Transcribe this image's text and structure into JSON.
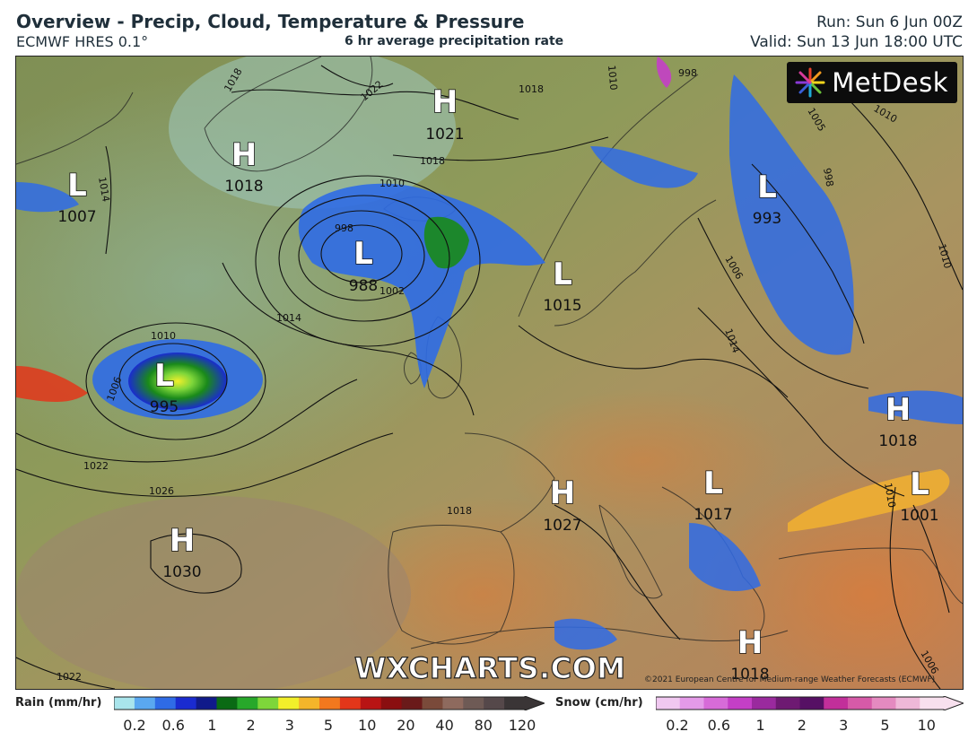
{
  "header": {
    "title": "Overview - Precip, Cloud, Temperature & Pressure",
    "model": "ECMWF HRES 0.1°",
    "product": "6 hr average precipitation rate",
    "run": "Run: Sun 6 Jun 00Z",
    "valid": "Valid: Sun 13 Jun 18:00 UTC"
  },
  "brand": "MetDesk",
  "watermark": "WXCHARTS.COM",
  "copyright": "©2021 European Centre for Medium-range Weather Forecasts (ECMWF)",
  "pressure_systems": [
    {
      "type": "H",
      "value": "1021"
    },
    {
      "type": "H",
      "value": "1018"
    },
    {
      "type": "L",
      "value": "1007"
    },
    {
      "type": "L",
      "value": "988"
    },
    {
      "type": "L",
      "value": "1015"
    },
    {
      "type": "L",
      "value": "993"
    },
    {
      "type": "L",
      "value": "995"
    },
    {
      "type": "H",
      "value": "1018"
    },
    {
      "type": "H",
      "value": "1027"
    },
    {
      "type": "L",
      "value": "1017"
    },
    {
      "type": "L",
      "value": "1001"
    },
    {
      "type": "H",
      "value": "1030"
    },
    {
      "type": "H",
      "value": "1018"
    }
  ],
  "isobar_labels": [
    "1018",
    "1022",
    "1018",
    "1014",
    "1010",
    "998",
    "1002",
    "1014",
    "1010",
    "1006",
    "1022",
    "1026",
    "1022",
    "1018",
    "998",
    "1005",
    "1010",
    "1006",
    "1010",
    "998",
    "1010",
    "1014",
    "1018",
    "1006",
    "1010"
  ],
  "legend": {
    "rain": {
      "title": "Rain (mm/hr)",
      "ticks": [
        "0.2",
        "0.6",
        "1",
        "2",
        "3",
        "5",
        "10",
        "20",
        "40",
        "80",
        "120"
      ],
      "colors": [
        "#a9e5ec",
        "#5aa8f0",
        "#2f6be6",
        "#1a2bd0",
        "#101a8a",
        "#0a6a14",
        "#27a82a",
        "#7ed63a",
        "#f2ef2a",
        "#f4b52a",
        "#f2781e",
        "#e3361a",
        "#b81414",
        "#8a0e10",
        "#6a1a1a",
        "#7a4a3a",
        "#8e6a5e",
        "#6e5a55",
        "#55484a",
        "#3a3536"
      ]
    },
    "snow": {
      "title": "Snow (cm/hr)",
      "ticks": [
        "0.2",
        "0.6",
        "1",
        "2",
        "3",
        "5",
        "10"
      ],
      "colors": [
        "#f0c8f0",
        "#e49ae8",
        "#d76bd8",
        "#c43fc6",
        "#9a2a9e",
        "#6e1a72",
        "#561064",
        "#c22f9a",
        "#d65aa8",
        "#e48ac0",
        "#efb8d8",
        "#f8e0ee"
      ]
    }
  }
}
